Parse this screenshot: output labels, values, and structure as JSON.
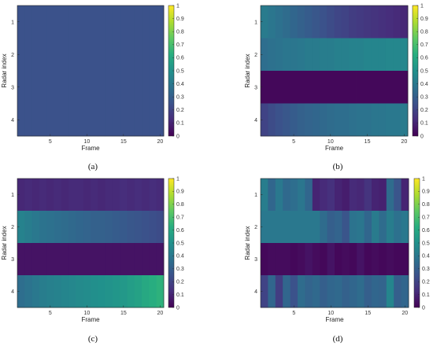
{
  "figure": {
    "colorscale": [
      "#440154",
      "#472d7b",
      "#3b528b",
      "#2c728e",
      "#21918c",
      "#28ae80",
      "#5ec962",
      "#addc30",
      "#fde725"
    ]
  },
  "chart_data": [
    {
      "type": "heatmap",
      "panel_label": "(a)",
      "xlabel": "Frame",
      "ylabel": "Radar index",
      "x": [
        1,
        2,
        3,
        4,
        5,
        6,
        7,
        8,
        9,
        10,
        11,
        12,
        13,
        14,
        15,
        16,
        17,
        18,
        19,
        20
      ],
      "y": [
        1,
        2,
        3,
        4
      ],
      "x_ticks": [
        5,
        10,
        15,
        20
      ],
      "y_ticks": [
        1,
        2,
        3,
        4
      ],
      "colorbar_ticks": [
        0,
        0.1,
        0.2,
        0.3,
        0.4,
        0.5,
        0.6,
        0.7,
        0.8,
        0.9,
        1
      ],
      "clim": [
        0,
        1
      ],
      "values": [
        [
          0.25,
          0.25,
          0.25,
          0.25,
          0.25,
          0.25,
          0.25,
          0.25,
          0.25,
          0.25,
          0.25,
          0.25,
          0.25,
          0.25,
          0.25,
          0.25,
          0.25,
          0.25,
          0.25,
          0.25
        ],
        [
          0.25,
          0.25,
          0.25,
          0.25,
          0.25,
          0.25,
          0.25,
          0.25,
          0.25,
          0.25,
          0.25,
          0.25,
          0.25,
          0.25,
          0.25,
          0.25,
          0.25,
          0.25,
          0.25,
          0.25
        ],
        [
          0.25,
          0.25,
          0.25,
          0.25,
          0.25,
          0.25,
          0.25,
          0.25,
          0.25,
          0.25,
          0.25,
          0.25,
          0.25,
          0.25,
          0.25,
          0.25,
          0.25,
          0.25,
          0.25,
          0.25
        ],
        [
          0.25,
          0.25,
          0.25,
          0.25,
          0.25,
          0.25,
          0.25,
          0.25,
          0.25,
          0.25,
          0.25,
          0.25,
          0.25,
          0.25,
          0.25,
          0.25,
          0.25,
          0.25,
          0.25,
          0.25
        ]
      ]
    },
    {
      "type": "heatmap",
      "panel_label": "(b)",
      "xlabel": "Frame",
      "ylabel": "Radar index",
      "x": [
        1,
        2,
        3,
        4,
        5,
        6,
        7,
        8,
        9,
        10,
        11,
        12,
        13,
        14,
        15,
        16,
        17,
        18,
        19,
        20
      ],
      "y": [
        1,
        2,
        3,
        4
      ],
      "x_ticks": [
        5,
        10,
        15,
        20
      ],
      "y_ticks": [
        1,
        2,
        3,
        4
      ],
      "colorbar_ticks": [
        0,
        0.1,
        0.2,
        0.3,
        0.4,
        0.5,
        0.6,
        0.7,
        0.8,
        0.9,
        1
      ],
      "clim": [
        0,
        1
      ],
      "values": [
        [
          0.41,
          0.39,
          0.37,
          0.35,
          0.33,
          0.31,
          0.29,
          0.27,
          0.25,
          0.23,
          0.21,
          0.2,
          0.18,
          0.17,
          0.16,
          0.15,
          0.14,
          0.13,
          0.12,
          0.11
        ],
        [
          0.36,
          0.37,
          0.38,
          0.39,
          0.39,
          0.4,
          0.41,
          0.41,
          0.42,
          0.42,
          0.43,
          0.43,
          0.44,
          0.44,
          0.45,
          0.45,
          0.45,
          0.46,
          0.46,
          0.46
        ],
        [
          0.02,
          0.02,
          0.02,
          0.02,
          0.02,
          0.02,
          0.02,
          0.02,
          0.02,
          0.02,
          0.02,
          0.02,
          0.02,
          0.02,
          0.02,
          0.02,
          0.02,
          0.02,
          0.02,
          0.02
        ],
        [
          0.2,
          0.23,
          0.25,
          0.27,
          0.29,
          0.31,
          0.32,
          0.33,
          0.34,
          0.35,
          0.36,
          0.36,
          0.37,
          0.38,
          0.38,
          0.39,
          0.39,
          0.4,
          0.4,
          0.41
        ]
      ]
    },
    {
      "type": "heatmap",
      "panel_label": "(c)",
      "xlabel": "Frame",
      "ylabel": "Radar index",
      "x": [
        1,
        2,
        3,
        4,
        5,
        6,
        7,
        8,
        9,
        10,
        11,
        12,
        13,
        14,
        15,
        16,
        17,
        18,
        19,
        20
      ],
      "y": [
        1,
        2,
        3,
        4
      ],
      "x_ticks": [
        5,
        10,
        15,
        20
      ],
      "y_ticks": [
        1,
        2,
        3,
        4
      ],
      "colorbar_ticks": [
        0,
        0.1,
        0.2,
        0.3,
        0.4,
        0.5,
        0.6,
        0.7,
        0.8,
        0.9,
        1
      ],
      "clim": [
        0,
        1
      ],
      "values": [
        [
          0.11,
          0.12,
          0.11,
          0.12,
          0.11,
          0.12,
          0.11,
          0.12,
          0.12,
          0.11,
          0.12,
          0.11,
          0.12,
          0.12,
          0.13,
          0.12,
          0.13,
          0.12,
          0.13,
          0.12
        ],
        [
          0.44,
          0.42,
          0.4,
          0.38,
          0.37,
          0.36,
          0.35,
          0.34,
          0.33,
          0.32,
          0.31,
          0.31,
          0.3,
          0.29,
          0.28,
          0.27,
          0.26,
          0.25,
          0.24,
          0.23
        ],
        [
          0.05,
          0.05,
          0.05,
          0.05,
          0.05,
          0.05,
          0.05,
          0.05,
          0.05,
          0.05,
          0.05,
          0.05,
          0.05,
          0.05,
          0.05,
          0.05,
          0.05,
          0.05,
          0.05,
          0.05
        ],
        [
          0.36,
          0.38,
          0.4,
          0.42,
          0.43,
          0.44,
          0.45,
          0.46,
          0.47,
          0.48,
          0.49,
          0.5,
          0.51,
          0.52,
          0.53,
          0.55,
          0.57,
          0.6,
          0.62,
          0.64
        ]
      ]
    },
    {
      "type": "heatmap",
      "panel_label": "(d)",
      "xlabel": "Frame",
      "ylabel": "Radar index",
      "x": [
        1,
        2,
        3,
        4,
        5,
        6,
        7,
        8,
        9,
        10,
        11,
        12,
        13,
        14,
        15,
        16,
        17,
        18,
        19,
        20
      ],
      "y": [
        1,
        2,
        3,
        4
      ],
      "x_ticks": [
        5,
        10,
        15,
        20
      ],
      "y_ticks": [
        1,
        2,
        3,
        4
      ],
      "colorbar_ticks": [
        0,
        0.1,
        0.2,
        0.3,
        0.4,
        0.5,
        0.6,
        0.7,
        0.8,
        0.9,
        1
      ],
      "clim": [
        0,
        1
      ],
      "values": [
        [
          0.42,
          0.33,
          0.4,
          0.34,
          0.36,
          0.39,
          0.33,
          0.1,
          0.12,
          0.14,
          0.1,
          0.08,
          0.12,
          0.11,
          0.15,
          0.1,
          0.09,
          0.35,
          0.26,
          0.1
        ],
        [
          0.4,
          0.4,
          0.4,
          0.4,
          0.4,
          0.4,
          0.4,
          0.4,
          0.35,
          0.3,
          0.32,
          0.26,
          0.38,
          0.39,
          0.33,
          0.41,
          0.35,
          0.42,
          0.37,
          0.4
        ],
        [
          0.02,
          0.03,
          0.03,
          0.03,
          0.02,
          0.03,
          0.05,
          0.03,
          0.02,
          0.05,
          0.02,
          0.03,
          0.02,
          0.05,
          0.02,
          0.03,
          0.02,
          0.03,
          0.02,
          0.02
        ],
        [
          0.2,
          0.33,
          0.18,
          0.33,
          0.25,
          0.35,
          0.32,
          0.34,
          0.3,
          0.33,
          0.34,
          0.31,
          0.33,
          0.35,
          0.3,
          0.33,
          0.32,
          0.45,
          0.3,
          0.33
        ]
      ]
    }
  ]
}
